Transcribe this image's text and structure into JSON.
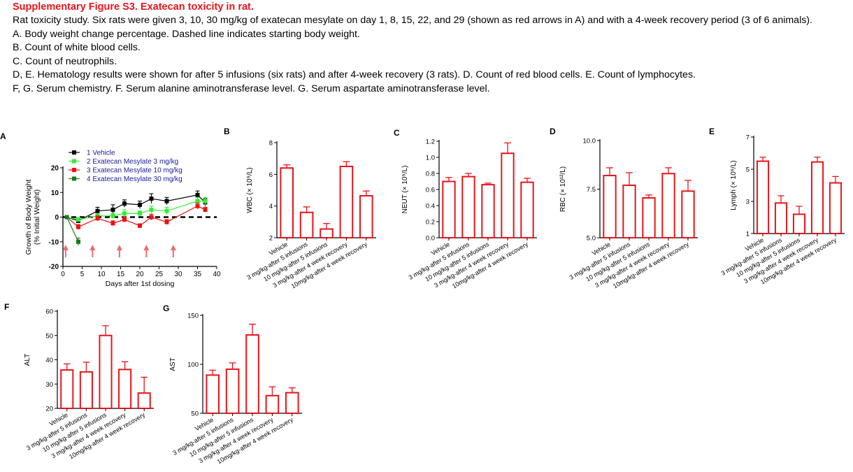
{
  "caption": {
    "title": "Supplementary Figure S3.  Exatecan toxicity in rat.",
    "lines": [
      "Rat toxicity study. Six rats were given 3, 10, 30 mg/kg of exatecan mesylate on day 1, 8, 15, 22, and 29 (shown as red arrows in A) and with a 4-week recovery period (3 of 6 animals).",
      "A.   Body weight change percentage. Dashed line indicates starting body weight.",
      "B.   Count of white blood cells.",
      "C.   Count of neutrophils.",
      "D, E. Hematology results were shown for after 5 infusions (six rats) and after 4-week recovery (3 rats). D. Count of red blood cells. E. Count of lymphocytes.",
      "F, G. Serum chemistry. F. Serum alanine aminotransferase level. G. Serum aspartate aminotransferase level."
    ]
  },
  "colors": {
    "caption_title": "#e8141b",
    "bar": "#e8141b",
    "arrow": "#f06b6b",
    "legend_text": "#1a1aa0"
  },
  "chart_data": [
    {
      "panel": "A",
      "type": "line",
      "xlabel": "Days after 1st dosing",
      "ylabel": [
        "Growth of Body Weight",
        "(% Initial Weight)"
      ],
      "xlim": [
        0,
        40
      ],
      "ylim": [
        -20,
        20
      ],
      "xticks": [
        0,
        5,
        10,
        15,
        20,
        25,
        30,
        35,
        40
      ],
      "yticks": [
        -20,
        -10,
        0,
        10,
        20
      ],
      "baseline": 0,
      "dosing_days": [
        1,
        8,
        15,
        22,
        29
      ],
      "legend_position": "top",
      "series": [
        {
          "name": "1 Vehicle",
          "color": "#000000",
          "x": [
            1,
            4,
            9,
            13,
            16,
            20,
            23,
            27,
            35,
            37
          ],
          "y": [
            0,
            -1.5,
            2.5,
            3,
            5.5,
            5,
            7.5,
            6.5,
            9,
            6
          ],
          "err": [
            0.6,
            0.8,
            1.5,
            2,
            1.5,
            1.5,
            2,
            1.5,
            1.6,
            1.5
          ]
        },
        {
          "name": "2 Exatecan Mesylate 3 mg/kg",
          "color": "#33ee33",
          "x": [
            1,
            4,
            9,
            13,
            16,
            20,
            23,
            27,
            35,
            37
          ],
          "y": [
            0,
            -1,
            0.5,
            0.5,
            1.5,
            1.5,
            3,
            2.5,
            6.5,
            6.5
          ],
          "err": [
            0.5,
            0.8,
            1,
            1,
            1.5,
            1,
            1.5,
            1.5,
            1.5,
            1.5
          ]
        },
        {
          "name": "3 Exatecan Mesylate 10 mg/kg",
          "color": "#ee1111",
          "x": [
            1,
            4,
            9,
            13,
            16,
            20,
            23,
            27,
            35,
            37
          ],
          "y": [
            0,
            -4,
            -0.5,
            -2.5,
            -1,
            -3.5,
            0,
            -2,
            4.5,
            3
          ],
          "err": [
            0.5,
            1,
            1,
            1,
            1,
            0.8,
            1.2,
            1,
            1.2,
            1
          ]
        },
        {
          "name": "4 Exatecan Mesylate 30 mg/kg",
          "color": "#1a7a1a",
          "x": [
            1,
            4
          ],
          "y": [
            0,
            -10
          ],
          "err": [
            0.5,
            1.5
          ]
        }
      ]
    },
    {
      "panel": "B",
      "type": "bar",
      "ylabel": "WBC (× 10⁹/L)",
      "ylim": [
        2,
        8
      ],
      "yticks": [
        2,
        4,
        6,
        8
      ],
      "categories": [
        "Vehicle",
        "3 mg/kg-after 5 infusions",
        "10 mg/kg-after 5 infusions",
        "3 mg/kg-after 4 week recovery",
        "10mg/kg-after 4 week recovery"
      ],
      "values": [
        6.4,
        3.6,
        2.55,
        6.5,
        4.65
      ],
      "errors": [
        0.2,
        0.35,
        0.35,
        0.3,
        0.3
      ]
    },
    {
      "panel": "C",
      "type": "bar",
      "ylabel": "NEUT (× 10⁹/L)",
      "ylim": [
        0,
        1.2
      ],
      "yticks": [
        0,
        0.2,
        0.4,
        0.6,
        0.8,
        1.0,
        1.2
      ],
      "categories": [
        "Vehicle",
        "3 mg/kg-after 5 infusions",
        "10 mg/kg-after 5 infusions",
        "3 mg/kg-after 4 week recovery",
        "10mg/kg-after 4 week recovery"
      ],
      "values": [
        0.7,
        0.76,
        0.66,
        1.05,
        0.69
      ],
      "errors": [
        0.05,
        0.04,
        0.02,
        0.13,
        0.05
      ]
    },
    {
      "panel": "D",
      "type": "bar",
      "ylabel": "RBC (× 10¹²/L)",
      "ylim": [
        5,
        10
      ],
      "yticks": [
        5,
        7.5,
        10
      ],
      "ytick_labels": [
        "5.0",
        "7.5",
        "10.0"
      ],
      "categories": [
        "Vehicle",
        "3 mg/kg-after 5 infusions",
        "10 mg/kg-after 5 infusions",
        "3 mg/kg-after 4 week recovery",
        "10mg/kg-after 4 week recovery"
      ],
      "values": [
        8.2,
        7.7,
        7.05,
        8.3,
        7.4
      ],
      "errors": [
        0.4,
        0.65,
        0.15,
        0.3,
        0.55
      ]
    },
    {
      "panel": "E",
      "type": "bar",
      "ylabel": "Lymph (× 10⁹/L)",
      "ylim": [
        1,
        7
      ],
      "yticks": [
        1,
        3,
        5,
        7
      ],
      "categories": [
        "Vehicle",
        "3 mg/kg-after 5 infusions",
        "10 mg/kg-after 5 infusions",
        "3 mg/kg-after 4 week recovery",
        "10mg/kg-after 4 week recovery"
      ],
      "values": [
        5.5,
        2.9,
        2.2,
        5.45,
        4.15
      ],
      "errors": [
        0.25,
        0.45,
        0.5,
        0.3,
        0.4
      ]
    },
    {
      "panel": "F",
      "type": "bar",
      "ylabel": "ALT",
      "ylim": [
        20,
        60
      ],
      "yticks": [
        20,
        30,
        40,
        50,
        60
      ],
      "categories": [
        "Vehicle",
        "3 mg/kg-after 5 infusions",
        "10 mg/kg-after 5 infusions",
        "3 mg/kg-after 4 week recovery",
        "10mg/kg-after 4 week recovery"
      ],
      "values": [
        35.8,
        35,
        50,
        36,
        26.3
      ],
      "errors": [
        2.5,
        4,
        4,
        3.2,
        6.5
      ]
    },
    {
      "panel": "G",
      "type": "bar",
      "ylabel": "AST",
      "ylim": [
        50,
        150
      ],
      "yticks": [
        50,
        100,
        150
      ],
      "categories": [
        "Vehicle",
        "3 mg/kg-after 5 infusions",
        "10 mg/kg-after 5 infusions",
        "3 mg/kg-after 4 week recovery",
        "10mg/kg-after 4 week recovery"
      ],
      "values": [
        89,
        95,
        130,
        68,
        71
      ],
      "errors": [
        5,
        6.5,
        11,
        9,
        5
      ]
    }
  ]
}
